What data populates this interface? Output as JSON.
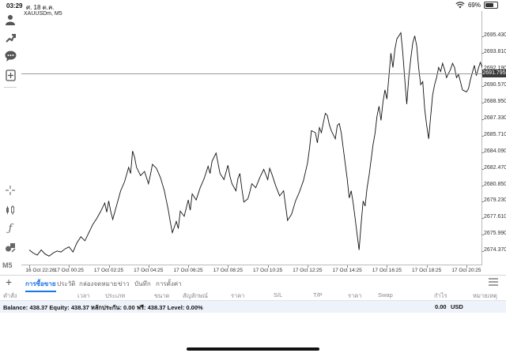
{
  "status_bar": {
    "time": "03:29",
    "date": "ศ. 18 ต.ค.",
    "battery": "69%",
    "battery_level": 0.69
  },
  "chart": {
    "title": "XAUUSDm, M5",
    "current_price": "2691.795",
    "timeframe_label": "M5"
  },
  "chart_data": {
    "type": "line",
    "symbol": "XAUUSDm",
    "timeframe": "M5",
    "y_ticks": [
      "2695.430",
      "2693.810",
      "2692.190",
      "2690.570",
      "2688.950",
      "2687.330",
      "2685.710",
      "2684.090",
      "2682.470",
      "2680.850",
      "2679.230",
      "2677.610",
      "2675.990",
      "2674.370"
    ],
    "x_ticks": [
      "16 Oct 22:26",
      "17 Oct 00:25",
      "17 Oct 02:25",
      "17 Oct 04:25",
      "17 Oct 06:25",
      "17 Oct 08:25",
      "17 Oct 10:25",
      "17 Oct 12:25",
      "17 Oct 14:25",
      "17 Oct 16:25",
      "17 Oct 18:25",
      "17 Oct 20:25"
    ],
    "ylim": [
      2673.3,
      2697.0
    ],
    "xlim": [
      0,
      11.2
    ],
    "last_price": 2691.795,
    "series": [
      {
        "values": [
          [
            0,
            2674.5
          ],
          [
            0.1,
            2674.2
          ],
          [
            0.2,
            2674.0
          ],
          [
            0.3,
            2674.5
          ],
          [
            0.4,
            2674.1
          ],
          [
            0.5,
            2673.9
          ],
          [
            0.6,
            2674.2
          ],
          [
            0.7,
            2674.4
          ],
          [
            0.8,
            2674.3
          ],
          [
            0.9,
            2674.6
          ],
          [
            1.0,
            2674.8
          ],
          [
            1.1,
            2674.3
          ],
          [
            1.2,
            2675.2
          ],
          [
            1.3,
            2675.8
          ],
          [
            1.4,
            2675.4
          ],
          [
            1.5,
            2676.2
          ],
          [
            1.6,
            2677.0
          ],
          [
            1.7,
            2677.6
          ],
          [
            1.8,
            2678.3
          ],
          [
            1.9,
            2679.1
          ],
          [
            1.95,
            2678.2
          ],
          [
            2.0,
            2679.3
          ],
          [
            2.05,
            2678.3
          ],
          [
            2.1,
            2677.5
          ],
          [
            2.2,
            2678.9
          ],
          [
            2.3,
            2680.3
          ],
          [
            2.4,
            2681.2
          ],
          [
            2.5,
            2682.6
          ],
          [
            2.55,
            2682.0
          ],
          [
            2.6,
            2684.2
          ],
          [
            2.65,
            2683.6
          ],
          [
            2.7,
            2682.6
          ],
          [
            2.8,
            2681.8
          ],
          [
            2.9,
            2682.2
          ],
          [
            3.0,
            2681.0
          ],
          [
            3.05,
            2681.9
          ],
          [
            3.1,
            2682.9
          ],
          [
            3.2,
            2682.5
          ],
          [
            3.3,
            2681.6
          ],
          [
            3.4,
            2680.3
          ],
          [
            3.5,
            2678.4
          ],
          [
            3.55,
            2677.2
          ],
          [
            3.6,
            2676.2
          ],
          [
            3.7,
            2677.3
          ],
          [
            3.75,
            2676.6
          ],
          [
            3.8,
            2678.3
          ],
          [
            3.9,
            2677.8
          ],
          [
            4.0,
            2679.4
          ],
          [
            4.05,
            2678.4
          ],
          [
            4.1,
            2680.0
          ],
          [
            4.2,
            2679.4
          ],
          [
            4.3,
            2680.6
          ],
          [
            4.4,
            2681.5
          ],
          [
            4.5,
            2682.7
          ],
          [
            4.55,
            2682.0
          ],
          [
            4.6,
            2683.2
          ],
          [
            4.7,
            2684.0
          ],
          [
            4.75,
            2683.0
          ],
          [
            4.8,
            2682.0
          ],
          [
            4.9,
            2681.4
          ],
          [
            5.0,
            2682.8
          ],
          [
            5.05,
            2681.7
          ],
          [
            5.1,
            2681.0
          ],
          [
            5.2,
            2680.3
          ],
          [
            5.25,
            2681.5
          ],
          [
            5.3,
            2682.0
          ],
          [
            5.35,
            2680.5
          ],
          [
            5.4,
            2679.2
          ],
          [
            5.5,
            2679.5
          ],
          [
            5.55,
            2680.2
          ],
          [
            5.6,
            2681.0
          ],
          [
            5.7,
            2680.6
          ],
          [
            5.8,
            2681.6
          ],
          [
            5.9,
            2682.4
          ],
          [
            6.0,
            2681.4
          ],
          [
            6.05,
            2682.5
          ],
          [
            6.1,
            2682.0
          ],
          [
            6.2,
            2680.8
          ],
          [
            6.3,
            2679.8
          ],
          [
            6.4,
            2680.3
          ],
          [
            6.5,
            2677.4
          ],
          [
            6.6,
            2678.0
          ],
          [
            6.7,
            2679.3
          ],
          [
            6.8,
            2680.2
          ],
          [
            6.9,
            2681.3
          ],
          [
            7.0,
            2683.0
          ],
          [
            7.05,
            2684.4
          ],
          [
            7.1,
            2686.2
          ],
          [
            7.2,
            2686.0
          ],
          [
            7.25,
            2685.0
          ],
          [
            7.3,
            2686.5
          ],
          [
            7.35,
            2686.0
          ],
          [
            7.4,
            2687.0
          ],
          [
            7.45,
            2687.9
          ],
          [
            7.5,
            2687.7
          ],
          [
            7.55,
            2686.8
          ],
          [
            7.6,
            2686.2
          ],
          [
            7.7,
            2685.4
          ],
          [
            7.75,
            2686.7
          ],
          [
            7.8,
            2686.9
          ],
          [
            7.85,
            2686.0
          ],
          [
            7.9,
            2684.5
          ],
          [
            8.0,
            2681.5
          ],
          [
            8.05,
            2679.6
          ],
          [
            8.1,
            2680.3
          ],
          [
            8.15,
            2679.1
          ],
          [
            8.2,
            2677.6
          ],
          [
            8.25,
            2676.0
          ],
          [
            8.3,
            2674.5
          ],
          [
            8.35,
            2677.0
          ],
          [
            8.4,
            2679.3
          ],
          [
            8.45,
            2678.8
          ],
          [
            8.5,
            2680.6
          ],
          [
            8.55,
            2681.8
          ],
          [
            8.6,
            2683.3
          ],
          [
            8.65,
            2684.8
          ],
          [
            8.7,
            2685.9
          ],
          [
            8.75,
            2687.6
          ],
          [
            8.8,
            2688.6
          ],
          [
            8.85,
            2687.2
          ],
          [
            8.9,
            2689.0
          ],
          [
            8.95,
            2690.2
          ],
          [
            9.0,
            2689.3
          ],
          [
            9.05,
            2691.5
          ],
          [
            9.1,
            2693.8
          ],
          [
            9.15,
            2692.4
          ],
          [
            9.2,
            2694.2
          ],
          [
            9.25,
            2695.2
          ],
          [
            9.3,
            2695.5
          ],
          [
            9.35,
            2695.8
          ],
          [
            9.4,
            2693.8
          ],
          [
            9.45,
            2691.2
          ],
          [
            9.5,
            2688.8
          ],
          [
            9.55,
            2691.5
          ],
          [
            9.6,
            2693.3
          ],
          [
            9.65,
            2694.8
          ],
          [
            9.7,
            2695.5
          ],
          [
            9.75,
            2694.5
          ],
          [
            9.8,
            2692.3
          ],
          [
            9.85,
            2690.7
          ],
          [
            9.9,
            2691.0
          ],
          [
            9.95,
            2688.3
          ],
          [
            10.0,
            2686.7
          ],
          [
            10.05,
            2685.4
          ],
          [
            10.1,
            2687.6
          ],
          [
            10.15,
            2689.7
          ],
          [
            10.2,
            2690.7
          ],
          [
            10.25,
            2691.4
          ],
          [
            10.3,
            2692.4
          ],
          [
            10.35,
            2692.0
          ],
          [
            10.4,
            2692.8
          ],
          [
            10.45,
            2692.2
          ],
          [
            10.5,
            2691.4
          ],
          [
            10.55,
            2691.8
          ],
          [
            10.6,
            2692.2
          ],
          [
            10.65,
            2692.8
          ],
          [
            10.7,
            2692.4
          ],
          [
            10.75,
            2691.4
          ],
          [
            10.8,
            2691.7
          ],
          [
            10.85,
            2691.0
          ],
          [
            10.9,
            2690.2
          ],
          [
            11.0,
            2690.0
          ],
          [
            11.05,
            2690.3
          ],
          [
            11.1,
            2691.2
          ],
          [
            11.15,
            2691.9
          ],
          [
            11.2,
            2692.6
          ],
          [
            11.25,
            2691.6
          ],
          [
            11.3,
            2692.3
          ],
          [
            11.35,
            2692.9
          ],
          [
            11.4,
            2692.4
          ],
          [
            11.45,
            2691.6
          ],
          [
            11.5,
            2692.0
          ],
          [
            11.55,
            2692.3
          ],
          [
            11.6,
            2692.0
          ],
          [
            11.7,
            2691.8
          ]
        ]
      }
    ]
  },
  "tabs": [
    {
      "label": "การซื้อขาย",
      "active": true
    },
    {
      "label": "ประวัติ",
      "active": false
    },
    {
      "label": "กล่องจดหมาย",
      "active": false
    },
    {
      "label": "ข่าว",
      "active": false
    },
    {
      "label": "บันทึก",
      "active": false
    },
    {
      "label": "การตั้งค่า",
      "active": false
    }
  ],
  "columns": [
    "คำสั่ง",
    "เวลา",
    "ประเภท",
    "ขนาด",
    "สัญลักษณ์",
    "ราคา",
    "S/L",
    "T/P",
    "ราคา",
    "Swap",
    "กำไร",
    "หมายเหตุ"
  ],
  "balance": {
    "text": "Balance: 438.37 Equity: 438.37 หลักประกัน: 0.00 ฟรี: 438.37 Level: 0.00%",
    "amount": "0.00",
    "currency": "USD"
  },
  "icons": {
    "sidebar": [
      "person-icon",
      "signal-icon",
      "chat-icon",
      "new-order-icon",
      "crosshair-icon",
      "chart-type-icon",
      "indicator-icon",
      "objects-icon"
    ]
  }
}
